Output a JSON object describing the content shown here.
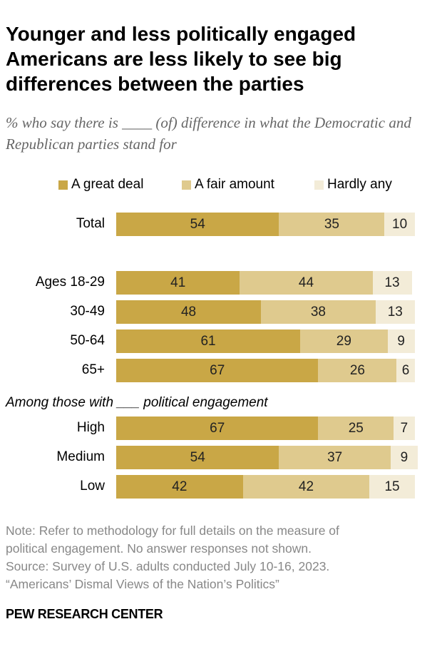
{
  "chart_data": {
    "type": "bar",
    "orientation": "horizontal",
    "stacked": true,
    "title": "Younger and less politically engaged Americans are less likely to see big differences between the parties",
    "subtitle": "% who say there is ____ (of) difference in what the Democratic and Republican parties stand for",
    "legend_placement": "top",
    "grid": false,
    "xlim": [
      0,
      100
    ],
    "series": [
      {
        "name": "A great deal",
        "color": "#C9A746",
        "values": [
          54,
          41,
          48,
          61,
          67,
          67,
          54,
          42
        ]
      },
      {
        "name": "A fair amount",
        "color": "#DFCA8E",
        "values": [
          35,
          44,
          38,
          29,
          26,
          25,
          37,
          42
        ]
      },
      {
        "name": "Hardly any",
        "color": "#F3ECD8",
        "values": [
          10,
          13,
          13,
          9,
          6,
          7,
          9,
          15
        ]
      }
    ],
    "categories": [
      "Total",
      "Ages 18-29",
      "30-49",
      "50-64",
      "65+",
      "High",
      "Medium",
      "Low"
    ],
    "group_label": "Among those with ___ political engagement"
  },
  "notes": [
    "Note: Refer to methodology for full details on the measure of",
    "political engagement. No answer responses not shown.",
    "Source: Survey of U.S. adults conducted July 10-16, 2023.",
    "“Americans’ Dismal Views of the Nation’s Politics”"
  ],
  "brand": "PEW RESEARCH CENTER"
}
